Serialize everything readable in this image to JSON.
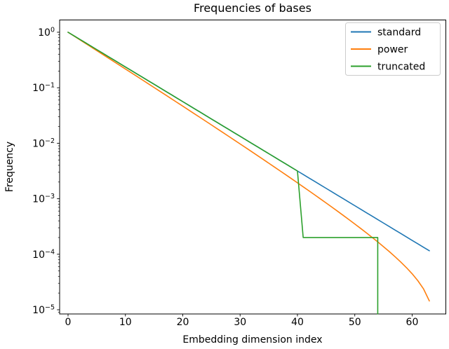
{
  "figure": {
    "title": "Frequencies of bases",
    "xlabel": "Embedding dimension index",
    "ylabel": "Frequency"
  },
  "axes": {
    "x_ticks": [
      0,
      10,
      20,
      30,
      40,
      50,
      60
    ],
    "y_tick_base": "10",
    "y_tick_exponents": [
      "0",
      "−1",
      "−2",
      "−3",
      "−4",
      "−5"
    ],
    "y_tick_exponent_values": [
      0,
      -1,
      -2,
      -3,
      -4,
      -5
    ],
    "yscale": "log",
    "xlim": [
      -1.5,
      65.9
    ],
    "ylim": [
      8.4e-06,
      1.6
    ],
    "grid": false
  },
  "colors": {
    "standard": "#1f77b4",
    "power": "#ff7f0e",
    "truncated": "#2ca02c",
    "spine": "#000000",
    "legend_border": "#cccccc",
    "background": "#ffffff"
  },
  "legend": {
    "location": "upper right",
    "entries": [
      "standard",
      "power",
      "truncated"
    ]
  },
  "chart_data": {
    "type": "line",
    "title": "Frequencies of bases",
    "xlabel": "Embedding dimension index",
    "ylabel": "Frequency",
    "yscale": "log",
    "xlim": [
      -1.5,
      65.9
    ],
    "ylim": [
      8.4e-06,
      1.6
    ],
    "legend_position": "upper right",
    "series": [
      {
        "name": "standard",
        "color": "#1f77b4",
        "x": [
          0,
          1,
          2,
          3,
          4,
          5,
          6,
          7,
          8,
          9,
          10,
          11,
          12,
          13,
          14,
          15,
          16,
          17,
          18,
          19,
          20,
          21,
          22,
          23,
          24,
          25,
          26,
          27,
          28,
          29,
          30,
          31,
          32,
          33,
          34,
          35,
          36,
          37,
          38,
          39,
          40,
          41,
          42,
          43,
          44,
          45,
          46,
          47,
          48,
          49,
          50,
          51,
          52,
          53,
          54,
          55,
          56,
          57,
          58,
          59,
          60,
          61,
          62,
          63
        ],
        "y": [
          1.0,
          0.866,
          0.7499,
          0.6494,
          0.5623,
          0.487,
          0.4217,
          0.3652,
          0.3162,
          0.2738,
          0.2371,
          0.2054,
          0.1778,
          0.154,
          0.1334,
          0.1155,
          0.1,
          0.0866,
          0.07499,
          0.06494,
          0.05623,
          0.0487,
          0.04217,
          0.03652,
          0.03162,
          0.02738,
          0.02371,
          0.02054,
          0.01778,
          0.0154,
          0.01334,
          0.01155,
          0.01,
          0.00866,
          0.007499,
          0.006494,
          0.005623,
          0.00487,
          0.004217,
          0.003652,
          0.003162,
          0.002738,
          0.002371,
          0.002054,
          0.001778,
          0.00154,
          0.001334,
          0.001155,
          0.001,
          0.000866,
          0.0007499,
          0.0006494,
          0.0005623,
          0.000487,
          0.0004217,
          0.0003652,
          0.0003162,
          0.0002738,
          0.0002371,
          0.0002054,
          0.0001778,
          0.000154,
          0.0001334,
          0.0001155
        ]
      },
      {
        "name": "power",
        "color": "#ff7f0e",
        "x": [
          0,
          1,
          2,
          3,
          4,
          5,
          6,
          7,
          8,
          9,
          10,
          11,
          12,
          13,
          14,
          15,
          16,
          17,
          18,
          19,
          20,
          21,
          22,
          23,
          24,
          25,
          26,
          27,
          28,
          29,
          30,
          31,
          32,
          33,
          34,
          35,
          36,
          37,
          38,
          39,
          40,
          41,
          42,
          43,
          44,
          45,
          46,
          47,
          48,
          49,
          50,
          51,
          52,
          53,
          54,
          55,
          56,
          57,
          58,
          59,
          60,
          61,
          62,
          63
        ],
        "y": [
          1.0,
          0.8592,
          0.7381,
          0.634,
          0.5445,
          0.4676,
          0.4014,
          0.3446,
          0.2958,
          0.2539,
          0.2178,
          0.1869,
          0.1603,
          0.1375,
          0.1179,
          0.101,
          0.0866,
          0.07421,
          0.06357,
          0.05445,
          0.04663,
          0.03992,
          0.03416,
          0.02923,
          0.025,
          0.02138,
          0.01827,
          0.01561,
          0.01334,
          0.01139,
          0.00972,
          0.008292,
          0.007071,
          0.006027,
          0.005134,
          0.004371,
          0.00372,
          0.003163,
          0.002688,
          0.002282,
          0.001936,
          0.001642,
          0.00139,
          0.001176,
          0.000994,
          0.000839,
          0.000707,
          0.000595,
          0.0005,
          0.000419,
          0.000351,
          0.000293,
          0.000244,
          0.000202,
          0.000167,
          0.000137,
          0.000112,
          9.06e-05,
          7.26e-05,
          5.74e-05,
          4.45e-05,
          3.33e-05,
          2.36e-05,
          1.44e-05
        ]
      },
      {
        "name": "truncated",
        "color": "#2ca02c",
        "x": [
          0,
          1,
          2,
          3,
          4,
          5,
          6,
          7,
          8,
          9,
          10,
          11,
          12,
          13,
          14,
          15,
          16,
          17,
          18,
          19,
          20,
          21,
          22,
          23,
          24,
          25,
          26,
          27,
          28,
          29,
          30,
          31,
          32,
          33,
          34,
          35,
          36,
          37,
          38,
          39,
          40,
          41,
          42,
          43,
          44,
          45,
          46,
          47,
          48,
          49,
          50,
          51,
          52,
          53,
          54,
          54
        ],
        "y": [
          1.0,
          0.866,
          0.7499,
          0.6494,
          0.5623,
          0.487,
          0.4217,
          0.3652,
          0.3162,
          0.2738,
          0.2371,
          0.2054,
          0.1778,
          0.154,
          0.1334,
          0.1155,
          0.1,
          0.0866,
          0.07499,
          0.06494,
          0.05623,
          0.0487,
          0.04217,
          0.03652,
          0.03162,
          0.02738,
          0.02371,
          0.02054,
          0.01778,
          0.0154,
          0.01334,
          0.01155,
          0.01,
          0.00866,
          0.007499,
          0.006494,
          0.005623,
          0.00487,
          0.004217,
          0.003652,
          0.003162,
          0.0002,
          0.0002,
          0.0002,
          0.0002,
          0.0002,
          0.0002,
          0.0002,
          0.0002,
          0.0002,
          0.0002,
          0.0002,
          0.0002,
          0.0002,
          0.0002,
          1e-09
        ]
      }
    ]
  }
}
